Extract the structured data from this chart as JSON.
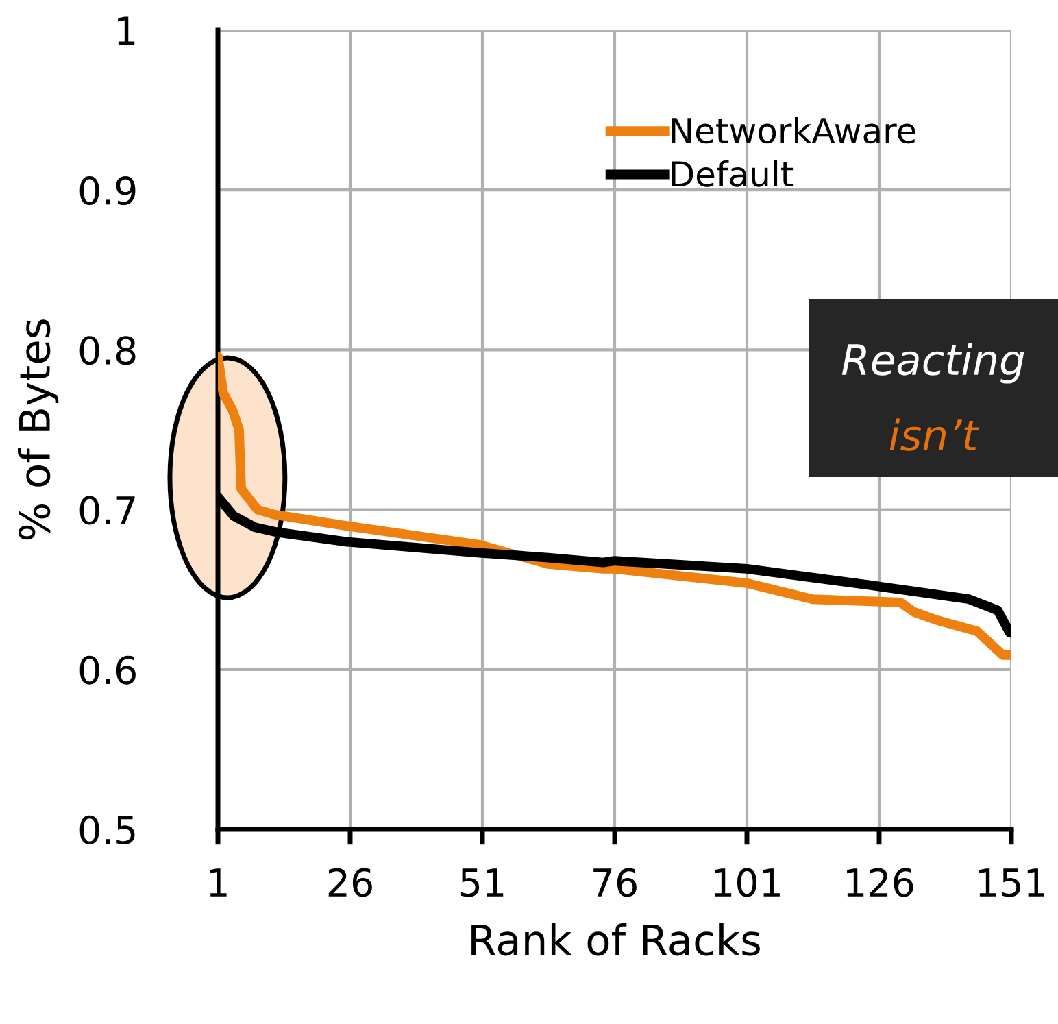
{
  "chart_data": {
    "type": "line",
    "xlabel": "Rank of Racks",
    "ylabel": "% of Bytes",
    "xlim": [
      1,
      151
    ],
    "xticks": [
      1,
      26,
      51,
      76,
      101,
      126,
      151
    ],
    "ylim": [
      0.5,
      1
    ],
    "yticks": [
      0.5,
      0.6,
      0.7,
      0.8,
      0.9,
      1
    ],
    "grid": true,
    "legend": "top right",
    "marker": "none",
    "line_style": "solid",
    "annotations": [
      "Reacting",
      "isn’t"
    ],
    "series": [
      {
        "name": "NetworkAware",
        "color": "#ee8010",
        "x": [
          1,
          2,
          3.8,
          5,
          5.4,
          8.5,
          11.6,
          25,
          50.5,
          63.4,
          73.8,
          76,
          101,
          113.4,
          130,
          132.6,
          136.8,
          144.5,
          149.4,
          150.7
        ],
        "values": [
          0.796,
          0.773,
          0.762,
          0.75,
          0.713,
          0.7,
          0.697,
          0.69,
          0.678,
          0.666,
          0.663,
          0.663,
          0.654,
          0.644,
          0.642,
          0.636,
          0.631,
          0.624,
          0.609,
          0.609
        ]
      },
      {
        "name": "Default",
        "color": "#000000",
        "x": [
          1,
          4,
          8,
          12,
          25,
          50.5,
          63.4,
          73.8,
          76,
          101,
          110,
          126,
          143,
          148.4,
          150.7
        ],
        "values": [
          0.708,
          0.696,
          0.689,
          0.686,
          0.68,
          0.673,
          0.67,
          0.667,
          0.668,
          0.663,
          0.659,
          0.652,
          0.644,
          0.637,
          0.623
        ]
      }
    ]
  }
}
